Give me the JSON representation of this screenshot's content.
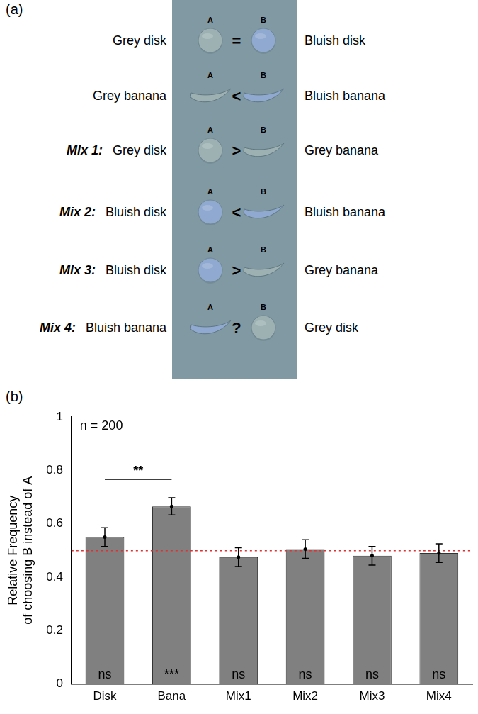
{
  "panel_a": {
    "label": "(a)",
    "rows": [
      {
        "prefix": null,
        "left": {
          "text": "Grey disk",
          "marker": "circle",
          "color": "#9db1b3"
        },
        "a": "A",
        "relation": "=",
        "b": "B",
        "right": {
          "text": "Bluish disk",
          "marker": "circle",
          "color": "#8fa9d0"
        }
      },
      {
        "prefix": null,
        "left": {
          "text": "Grey banana",
          "marker": "banana",
          "color": "#9db1b3"
        },
        "a": "A",
        "relation": "<",
        "b": "B",
        "right": {
          "text": "Bluish banana",
          "marker": "banana",
          "color": "#8fa9d0"
        }
      },
      {
        "prefix": "Mix 1:",
        "left": {
          "text": "Grey disk",
          "marker": "circle",
          "color": "#9db1b3"
        },
        "a": "A",
        "relation": ">",
        "b": "B",
        "right": {
          "text": "Grey banana",
          "marker": "banana",
          "color": "#9db1b3"
        }
      },
      {
        "prefix": "Mix 2:",
        "left": {
          "text": "Bluish disk",
          "marker": "circle",
          "color": "#8fa9d0"
        },
        "a": "A",
        "relation": "<",
        "b": "B",
        "right": {
          "text": "Bluish banana",
          "marker": "banana",
          "color": "#8fa9d0"
        }
      },
      {
        "prefix": "Mix 3:",
        "left": {
          "text": "Bluish disk",
          "marker": "circle",
          "color": "#8fa9d0"
        },
        "a": "A",
        "relation": ">",
        "b": "B",
        "right": {
          "text": "Grey banana",
          "marker": "banana",
          "color": "#9db1b3"
        }
      },
      {
        "prefix": "Mix 4:",
        "left": {
          "text": "Bluish banana",
          "marker": "banana",
          "color": "#8fa9d0"
        },
        "a": "A",
        "relation": "?",
        "b": "B",
        "right": {
          "text": "Grey disk",
          "marker": "circle",
          "color": "#9db1b3"
        }
      }
    ]
  },
  "chart_data": {
    "type": "bar",
    "panel_label": "(b)",
    "y_label": "Relative Frequency\nof choosing B instead of A",
    "categories": [
      "Disk",
      "Bana",
      "Mix1",
      "Mix2",
      "Mix3",
      "Mix4"
    ],
    "values": [
      0.55,
      0.665,
      0.475,
      0.505,
      0.48,
      0.49
    ],
    "errors": [
      0.035,
      0.032,
      0.035,
      0.035,
      0.035,
      0.035
    ],
    "significance": [
      "ns",
      "***",
      "ns",
      "ns",
      "ns",
      "ns"
    ],
    "comparisons": [
      {
        "from": "Disk",
        "to": "Bana",
        "label": "**"
      }
    ],
    "reference_line": {
      "value": 0.5,
      "color": "#e03030",
      "line_style": "dotted"
    },
    "annotations": [
      "n = 200"
    ],
    "color": "#808080",
    "ylim": [
      0,
      1
    ],
    "yticks": [
      0,
      0.2,
      0.4,
      0.6,
      0.8,
      1
    ],
    "grid": false
  }
}
